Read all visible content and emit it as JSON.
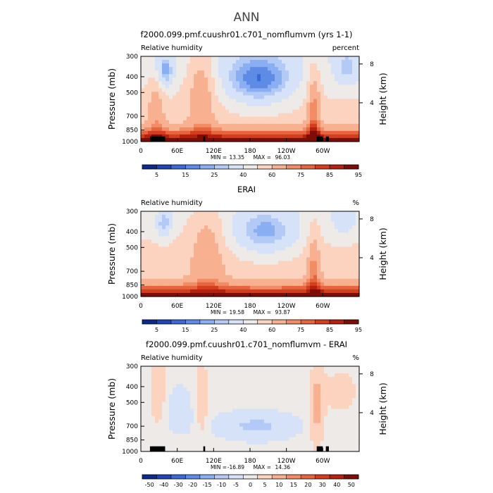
{
  "figure_title": "ANN",
  "colors": {
    "palette": [
      "#0a2a8c",
      "#1f46b4",
      "#3b6ad7",
      "#5e8be6",
      "#8aaef2",
      "#b3c9f6",
      "#d6e2f8",
      "#eeeae8",
      "#fbd3bf",
      "#f7b090",
      "#f28c65",
      "#e6653e",
      "#d43e1e",
      "#b4210f",
      "#7d0d05"
    ],
    "land_mask": "#000000"
  },
  "chart_data": [
    {
      "type": "heatmap",
      "title": "f2000.099.pmf.cuushr01.c701_nomflumvm (yrs 1-1)",
      "variable": "Relative humidity",
      "units": "percent",
      "ylabel": "Pressure (mb)",
      "right_ylabel": "Height (km)",
      "xticks": [
        "0",
        "60E",
        "120E",
        "180",
        "120W",
        "60W"
      ],
      "yticks": [
        "300",
        "400",
        "500",
        "700",
        "850",
        "1000"
      ],
      "right_yticks": [
        "8",
        "4"
      ],
      "min_label": "MIN =",
      "min": "13.35",
      "max_label": "MAX =",
      "max": "96.03",
      "colorbar_ticks": [
        "5",
        "15",
        "25",
        "40",
        "60",
        "75",
        "85",
        "95"
      ],
      "land_blocks": [
        [
          15,
          40
        ],
        [
          103,
          106
        ],
        [
          290,
          300
        ],
        [
          305,
          310
        ]
      ]
    },
    {
      "type": "heatmap",
      "title": "ERAI",
      "variable": "Relative humidity",
      "units": "%",
      "ylabel": "Pressure (mb)",
      "right_ylabel": "Height (km)",
      "xticks": [
        "0",
        "60E",
        "120E",
        "180",
        "120W",
        "60W"
      ],
      "yticks": [
        "300",
        "400",
        "500",
        "700",
        "850",
        "1000"
      ],
      "right_yticks": [
        "8",
        "4"
      ],
      "min_label": "MIN =",
      "min": "19.58",
      "max_label": "MAX =",
      "max": "93.87",
      "colorbar_ticks": [
        "5",
        "15",
        "25",
        "40",
        "60",
        "75",
        "85",
        "95"
      ],
      "land_blocks": []
    },
    {
      "type": "heatmap",
      "title": "f2000.099.pmf.cuushr01.c701_nomflumvm - ERAI",
      "variable": "Relative humidity",
      "units": "%",
      "ylabel": "Pressure (mb)",
      "right_ylabel": "Height (km)",
      "xticks": [
        "0",
        "60E",
        "120E",
        "180",
        "120W",
        "60W"
      ],
      "yticks": [
        "300",
        "400",
        "500",
        "700",
        "850",
        "1000"
      ],
      "right_yticks": [
        "8",
        "4"
      ],
      "min_label": "MIN =",
      "min": "-16.89",
      "max_label": "MAX =",
      "max": "14.36",
      "colorbar_ticks": [
        "-50",
        "-40",
        "-30",
        "-20",
        "-15",
        "-10",
        "-5",
        "0",
        "5",
        "10",
        "15",
        "20",
        "30",
        "40",
        "50"
      ],
      "land_blocks": [
        [
          15,
          40
        ],
        [
          103,
          106
        ],
        [
          290,
          300
        ],
        [
          305,
          310
        ]
      ]
    }
  ]
}
